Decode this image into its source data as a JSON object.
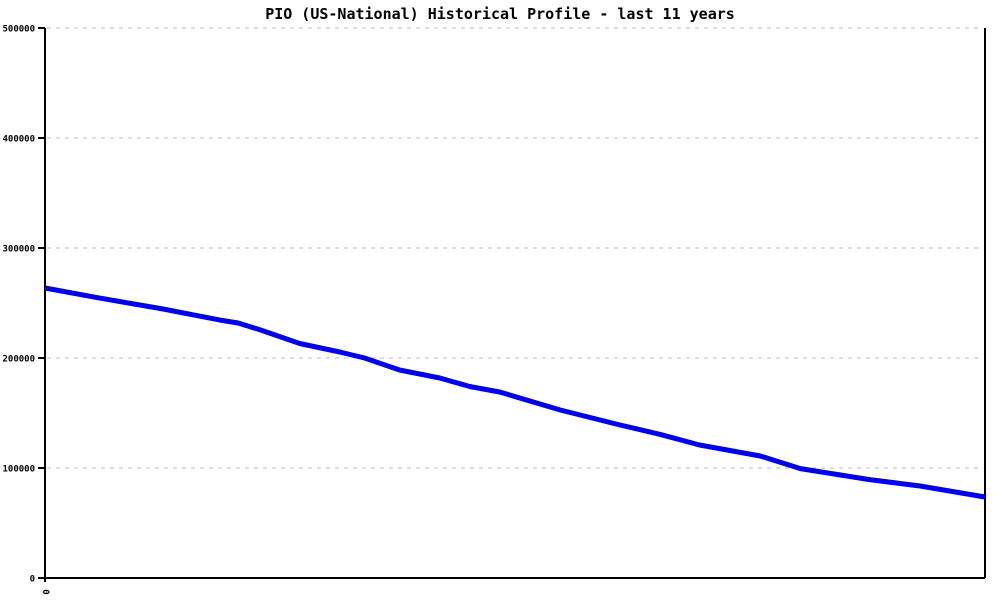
{
  "chart_data": {
    "type": "line",
    "title": "PIO (US-National) Historical Profile - last 11 years",
    "xlabel": "",
    "ylabel": "",
    "xlim": [
      0,
      11
    ],
    "ylim": [
      0,
      500000
    ],
    "grid": {
      "horizontal": true,
      "vertical": false,
      "style": "dashed"
    },
    "legend": {
      "visible": false
    },
    "yticks": [
      {
        "value": 0,
        "label": "0"
      },
      {
        "value": 100000,
        "label": "100000"
      },
      {
        "value": 200000,
        "label": "200000"
      },
      {
        "value": 300000,
        "label": "300000"
      },
      {
        "value": 400000,
        "label": "400000"
      },
      {
        "value": 500000,
        "label": "500000"
      }
    ],
    "xticks": [
      {
        "value": 0,
        "label": "0",
        "rotated": true
      }
    ],
    "colors": {
      "line": "#0000ee",
      "grid": "#bebebe",
      "axis": "#000000",
      "text": "#000000",
      "background": "#ffffff"
    },
    "series": [
      {
        "name": "PIO (US-National)",
        "x": [
          0,
          0.64,
          1.35,
          2.05,
          2.26,
          2.52,
          2.98,
          3.45,
          3.74,
          4.15,
          4.62,
          4.97,
          5.32,
          6.03,
          6.73,
          7.2,
          7.66,
          8.37,
          8.84,
          9.65,
          10.24,
          11
        ],
        "values": [
          263600,
          254500,
          245000,
          234500,
          231800,
          225500,
          213200,
          205500,
          200000,
          189100,
          181800,
          174100,
          169100,
          152700,
          139100,
          130500,
          120900,
          110900,
          99500,
          89500,
          83600,
          73600
        ]
      }
    ]
  }
}
